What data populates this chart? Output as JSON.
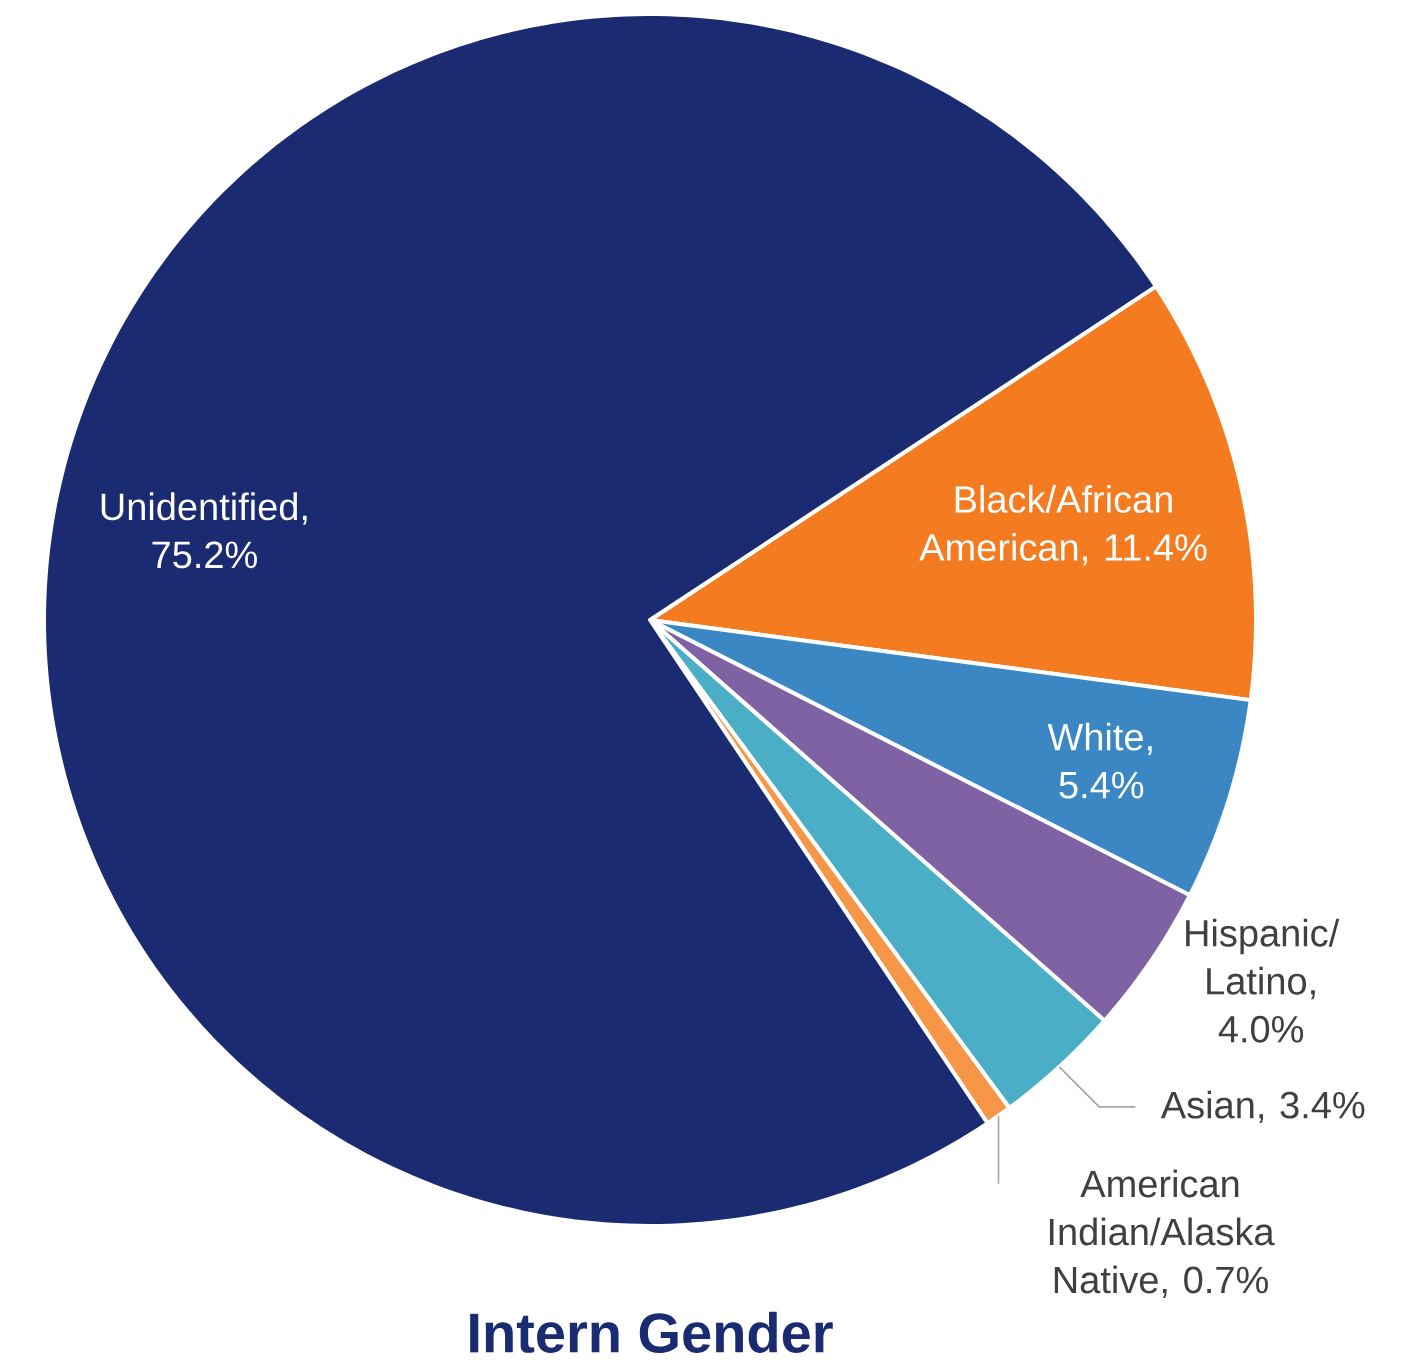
{
  "chart_data": {
    "type": "pie",
    "categories": [
      "Black/African American",
      "White",
      "Hispanic/Latino",
      "Asian",
      "American Indian/Alaska Native",
      "Unidentified"
    ],
    "values": [
      11.4,
      5.4,
      4.0,
      3.4,
      0.7,
      75.2
    ],
    "colors": [
      "#f47b20",
      "#3a87c4",
      "#7e62a3",
      "#4aaec6",
      "#f79646",
      "#1a2b72"
    ],
    "value_labels": [
      ", 11.4%",
      ", 5.4%",
      ", 4.0%",
      ", 3.4%",
      ", 0.7%",
      ", 75.2%"
    ],
    "annotations": [
      "Intern Gender"
    ]
  }
}
